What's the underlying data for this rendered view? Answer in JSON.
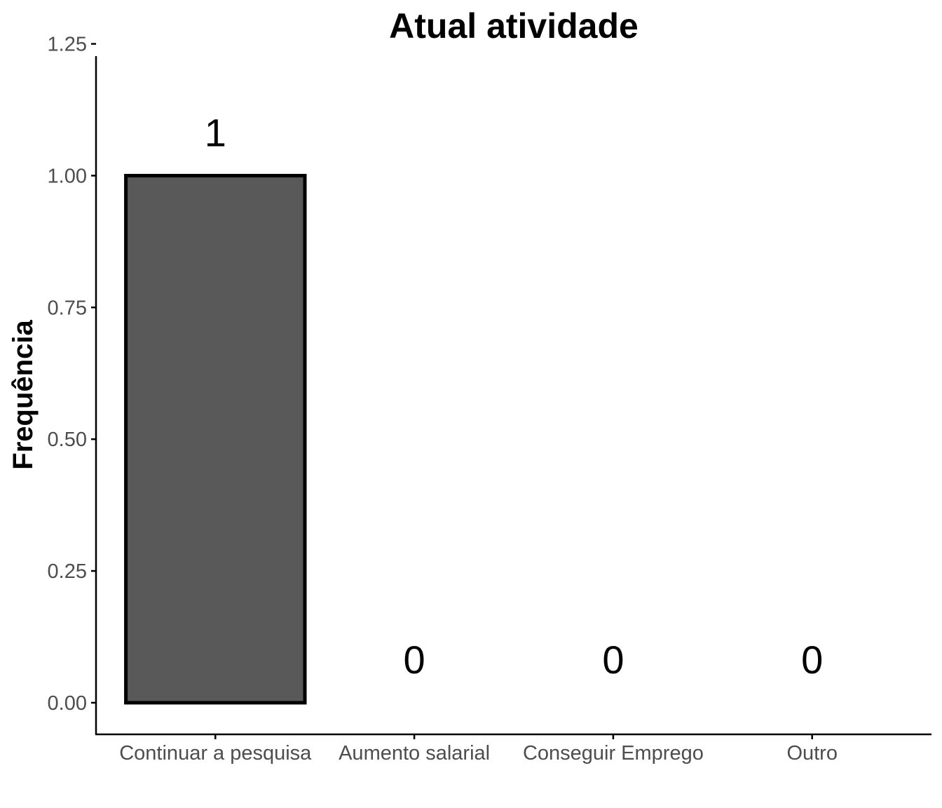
{
  "chart_data": {
    "type": "bar",
    "title": "Atual atividade",
    "xlabel": "",
    "ylabel": "Frequência",
    "categories": [
      "Continuar a pesquisa",
      "Aumento salarial",
      "Conseguir Emprego",
      "Outro"
    ],
    "values": [
      1,
      0,
      0,
      0
    ],
    "data_labels": [
      "1",
      "0",
      "0",
      "0"
    ],
    "yticks": [
      0,
      0.25,
      0.5,
      0.75,
      1,
      1.25
    ],
    "ytick_labels": [
      "0.00",
      "0.25",
      "0.50",
      "0.75",
      "1.00",
      "1.25"
    ],
    "ylim": [
      -0.06,
      1.28
    ],
    "grid": false,
    "bar_color": "#595959",
    "bar_edge_color": "#000000"
  }
}
